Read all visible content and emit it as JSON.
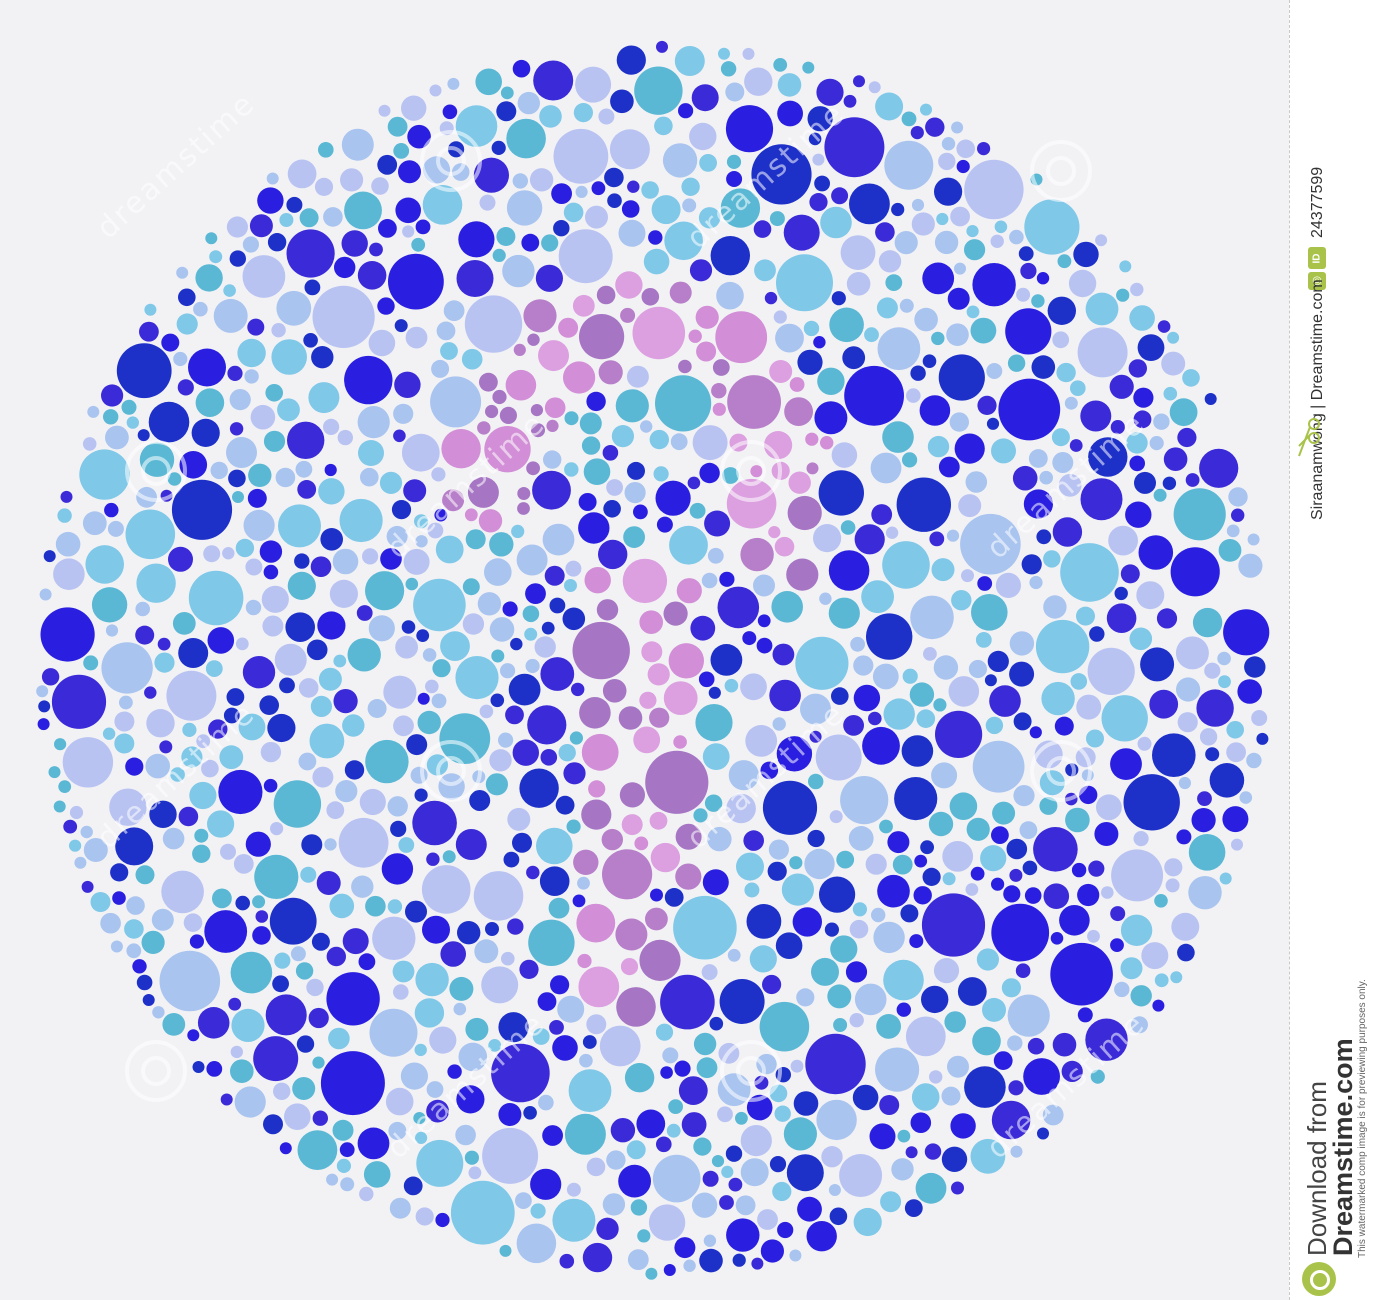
{
  "plate": {
    "palette": {
      "background_blues": [
        "#5ab8d4",
        "#7fc8e8",
        "#a9c4ef",
        "#b9c3f2",
        "#2a1fe0",
        "#3b2ad8",
        "#1d30c8"
      ],
      "figure_pinks": [
        "#b77ec9",
        "#d28ed6",
        "#a676c4",
        "#dca0e0"
      ]
    },
    "watermark_text": "dreamstime"
  },
  "sidebar": {
    "id_badge": "ID",
    "photo_id": "24377599",
    "credit": "Siraanamwong | Dreamstime.com",
    "download_label": "Download from",
    "brand_label": "Dreamstime.com",
    "notice": "This watermarked comp image is for previewing purposes only."
  }
}
